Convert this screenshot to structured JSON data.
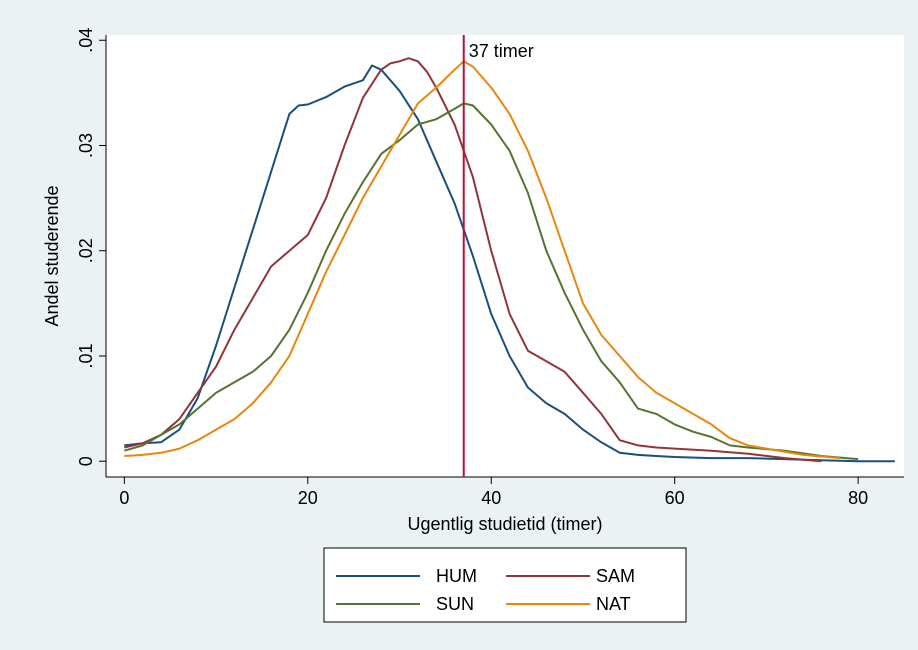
{
  "chart_data": {
    "type": "line",
    "title": "",
    "xlabel": "Ugentlig studietid (timer)",
    "ylabel": "Andel studerende",
    "xlim": [
      -2,
      85
    ],
    "ylim": [
      -0.0015,
      0.0405
    ],
    "x_ticks": [
      0,
      20,
      40,
      60,
      80
    ],
    "x_tick_labels": [
      "0",
      "20",
      "40",
      "60",
      "80"
    ],
    "y_ticks": [
      0,
      0.01,
      0.02,
      0.03,
      0.04
    ],
    "y_tick_labels": [
      "0",
      ".01",
      ".02",
      ".03",
      ".04"
    ],
    "grid": false,
    "legend": {
      "position": "bottom",
      "columns": 2
    },
    "reference_line": {
      "x": 37,
      "label": "37 timer",
      "color": "#b4123d"
    },
    "colors": {
      "outer_background": "#eaf2f3",
      "plot_background": "#ffffff",
      "HUM": "#1a4f7e",
      "SAM": "#90353b",
      "SUN": "#55752f",
      "NAT": "#e8870e"
    },
    "series": [
      {
        "name": "HUM",
        "x": [
          0,
          2,
          4,
          6,
          8,
          10,
          12,
          14,
          16,
          18,
          19,
          20,
          22,
          24,
          26,
          27,
          28,
          30,
          32,
          34,
          36,
          38,
          40,
          42,
          44,
          46,
          48,
          50,
          52,
          54,
          56,
          58,
          60,
          64,
          68,
          72,
          76,
          80,
          84
        ],
        "y": [
          0.0015,
          0.0017,
          0.0018,
          0.003,
          0.006,
          0.011,
          0.0165,
          0.022,
          0.0275,
          0.033,
          0.0338,
          0.0339,
          0.0346,
          0.0356,
          0.0362,
          0.0376,
          0.0372,
          0.0352,
          0.0325,
          0.0285,
          0.0245,
          0.0195,
          0.014,
          0.01,
          0.007,
          0.0055,
          0.0045,
          0.003,
          0.0018,
          0.0008,
          0.0006,
          0.0005,
          0.0004,
          0.0003,
          0.0003,
          0.0002,
          0.0001,
          0.0,
          0.0
        ]
      },
      {
        "name": "SAM",
        "x": [
          0,
          2,
          4,
          6,
          8,
          10,
          12,
          14,
          16,
          18,
          20,
          22,
          24,
          26,
          28,
          29,
          30,
          31,
          32,
          33,
          34,
          36,
          38,
          40,
          42,
          44,
          46,
          48,
          50,
          52,
          54,
          56,
          58,
          60,
          64,
          68,
          72,
          76
        ],
        "y": [
          0.0013,
          0.0017,
          0.0025,
          0.004,
          0.0065,
          0.009,
          0.0125,
          0.0155,
          0.0185,
          0.02,
          0.0215,
          0.025,
          0.03,
          0.0345,
          0.0372,
          0.0378,
          0.038,
          0.0383,
          0.038,
          0.037,
          0.0355,
          0.032,
          0.027,
          0.02,
          0.014,
          0.0105,
          0.0095,
          0.0085,
          0.0065,
          0.0045,
          0.002,
          0.0015,
          0.0013,
          0.0012,
          0.001,
          0.0007,
          0.0003,
          0.0
        ]
      },
      {
        "name": "SUN",
        "x": [
          0,
          2,
          4,
          6,
          8,
          10,
          12,
          14,
          16,
          18,
          20,
          22,
          24,
          26,
          28,
          30,
          32,
          34,
          36,
          37,
          38,
          40,
          42,
          44,
          46,
          48,
          50,
          52,
          54,
          56,
          58,
          60,
          62,
          64,
          66,
          68,
          72,
          76,
          80
        ],
        "y": [
          0.001,
          0.0015,
          0.0025,
          0.0035,
          0.005,
          0.0065,
          0.0075,
          0.0085,
          0.01,
          0.0125,
          0.016,
          0.02,
          0.0235,
          0.0265,
          0.0292,
          0.0305,
          0.032,
          0.0325,
          0.0335,
          0.034,
          0.0338,
          0.032,
          0.0295,
          0.0255,
          0.02,
          0.016,
          0.0125,
          0.0095,
          0.0075,
          0.005,
          0.0045,
          0.0035,
          0.0028,
          0.0023,
          0.0015,
          0.0013,
          0.001,
          0.0005,
          0.0002
        ]
      },
      {
        "name": "NAT",
        "x": [
          0,
          2,
          4,
          6,
          8,
          10,
          12,
          14,
          16,
          18,
          20,
          22,
          24,
          26,
          28,
          30,
          32,
          34,
          36,
          37,
          38,
          40,
          42,
          44,
          46,
          48,
          50,
          52,
          54,
          56,
          58,
          60,
          62,
          64,
          66,
          68,
          70,
          74,
          78
        ],
        "y": [
          0.0005,
          0.0006,
          0.0008,
          0.0012,
          0.002,
          0.003,
          0.004,
          0.0055,
          0.0075,
          0.01,
          0.014,
          0.018,
          0.0215,
          0.025,
          0.028,
          0.031,
          0.034,
          0.0355,
          0.0372,
          0.038,
          0.0375,
          0.0355,
          0.033,
          0.0295,
          0.025,
          0.02,
          0.015,
          0.012,
          0.01,
          0.008,
          0.0065,
          0.0055,
          0.0045,
          0.0035,
          0.0022,
          0.0015,
          0.0012,
          0.0006,
          0.0003
        ]
      }
    ]
  }
}
